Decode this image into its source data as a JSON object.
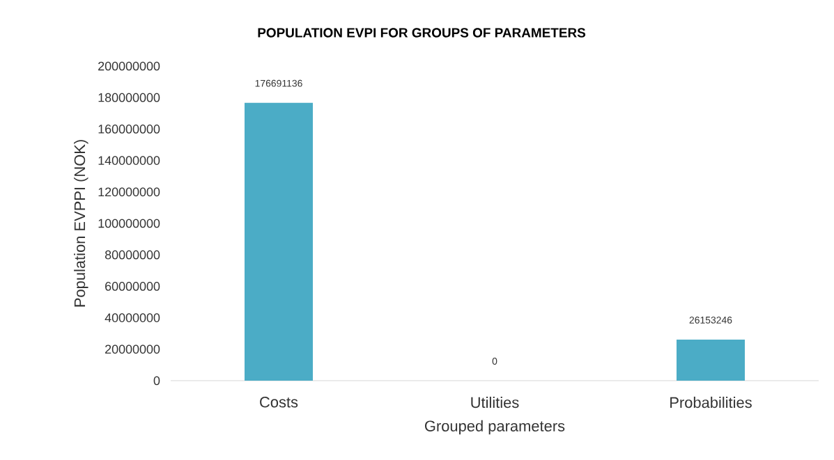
{
  "chart_data": {
    "type": "bar",
    "title": "POPULATION EVPI FOR GROUPS OF PARAMETERS",
    "xlabel": "Grouped parameters",
    "ylabel": "Population EVPPI (NOK)",
    "categories": [
      "Costs",
      "Utilities",
      "Probabilities"
    ],
    "values": [
      176691136,
      0,
      26153246
    ],
    "color": "#4bacc6",
    "data_labels": true,
    "ylim": [
      0,
      200000000
    ],
    "yticks": [
      0,
      20000000,
      40000000,
      60000000,
      80000000,
      100000000,
      120000000,
      140000000,
      160000000,
      180000000,
      200000000
    ]
  }
}
